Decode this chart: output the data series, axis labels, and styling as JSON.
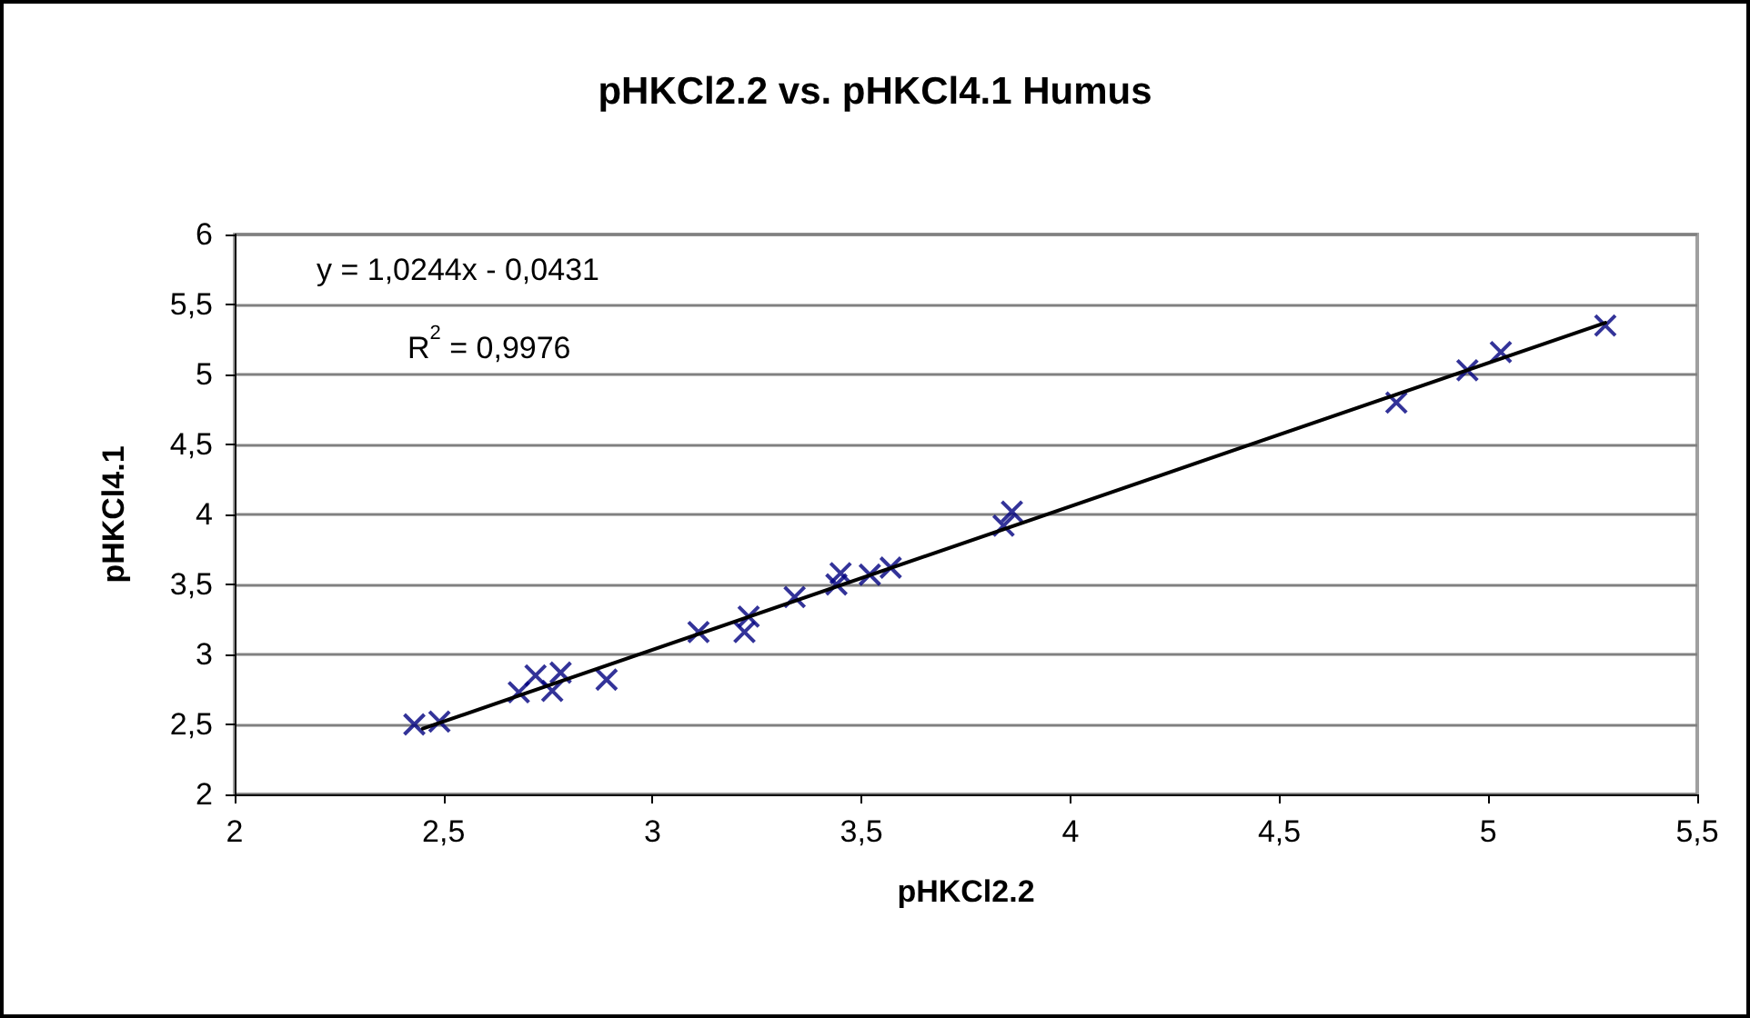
{
  "chart_data": {
    "type": "scatter",
    "title": "pHKCl2.2 vs. pHKCl4.1 Humus",
    "xlabel": "pHKCl2.2",
    "ylabel": "pHKCl4.1",
    "annotations": [
      "y = 1,0244x - 0,0431",
      "R$^{2}$ = 0,9976"
    ],
    "series": [
      {
        "color": "#000080",
        "marker": "cross",
        "x": [
          2.43,
          2.49,
          2.68,
          2.72,
          2.76,
          2.78,
          2.89,
          3.11,
          3.22,
          3.23,
          3.34,
          3.44,
          3.45,
          3.52,
          3.57,
          3.84,
          3.86,
          4.78,
          4.95,
          5.03,
          5.28
        ],
        "values": [
          2.5,
          2.52,
          2.73,
          2.85,
          2.74,
          2.87,
          2.82,
          3.16,
          3.16,
          3.27,
          3.41,
          3.5,
          3.58,
          3.57,
          3.62,
          3.92,
          4.02,
          4.8,
          5.03,
          5.16,
          5.35
        ]
      },
      {
        "type": "line",
        "color": "#000000",
        "marker": "none",
        "line_style": "solid",
        "x": [
          2.45,
          5.28
        ],
        "values": [
          2.47,
          5.37
        ]
      }
    ],
    "xlim": [
      2,
      5.5
    ],
    "xticks": [
      2,
      {
        "value": 2.5,
        "label": "2,5"
      },
      3,
      {
        "value": 3.5,
        "label": "3,5"
      },
      4,
      {
        "value": 4.5,
        "label": "4,5"
      },
      5,
      {
        "value": 5.5,
        "label": "5,5"
      }
    ],
    "ylim": [
      2,
      6
    ],
    "yticks": [
      2,
      {
        "value": 2.5,
        "label": "2,5"
      },
      3,
      {
        "value": 3.5,
        "label": "3,5"
      },
      4,
      {
        "value": 4.5,
        "label": "4,5"
      },
      5,
      {
        "value": 5.5,
        "label": "5,5"
      },
      6
    ],
    "grid": "y"
  }
}
